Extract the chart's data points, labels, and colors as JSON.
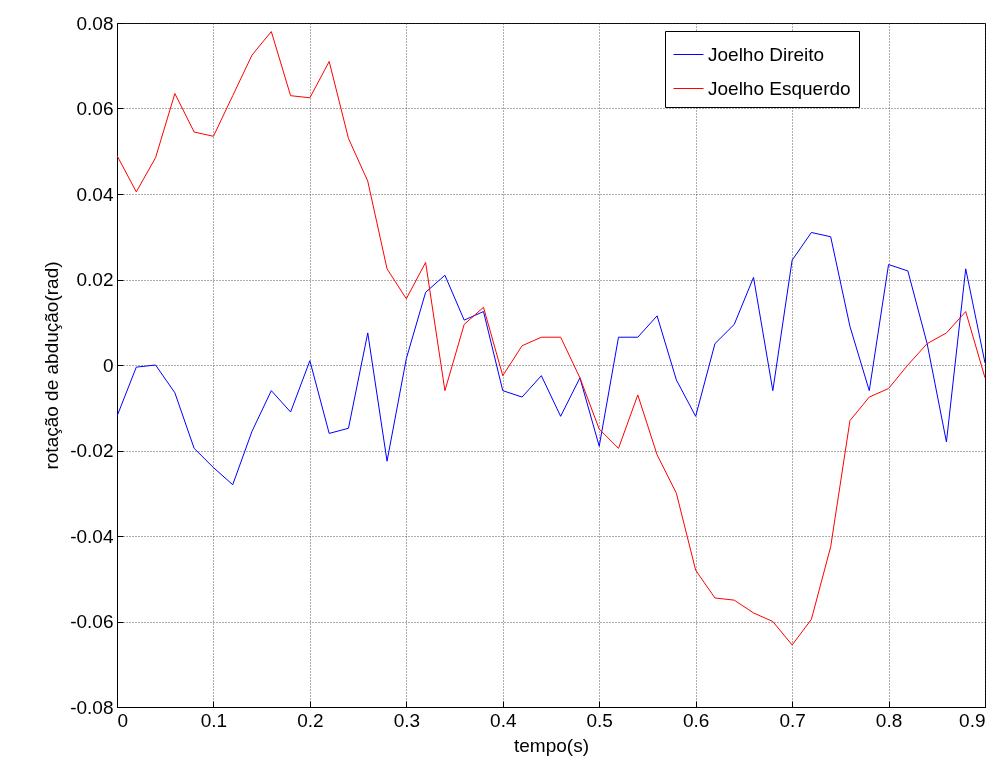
{
  "chart_data": {
    "type": "line",
    "xlabel": "tempo(s)",
    "ylabel": "rotação de abdução(rad)",
    "x": [
      0,
      0.02,
      0.04,
      0.06,
      0.08,
      0.1,
      0.12,
      0.14,
      0.16,
      0.18,
      0.2,
      0.22,
      0.24,
      0.26,
      0.28,
      0.3,
      0.32,
      0.34,
      0.36,
      0.38,
      0.4,
      0.42,
      0.44,
      0.46,
      0.48,
      0.5,
      0.52,
      0.54,
      0.56,
      0.58,
      0.6,
      0.62,
      0.64,
      0.66,
      0.68,
      0.7,
      0.72,
      0.74,
      0.76,
      0.78,
      0.8,
      0.82,
      0.84,
      0.86,
      0.88,
      0.9
    ],
    "series": [
      {
        "name": "Joelho Direito",
        "color": "#0000ff",
        "values": [
          -0.012,
          -0.0005,
          0,
          -0.0065,
          -0.0195,
          -0.024,
          -0.028,
          -0.0155,
          -0.006,
          -0.011,
          0.001,
          -0.016,
          -0.0148,
          0.0075,
          -0.0225,
          0.0015,
          0.017,
          0.021,
          0.0105,
          0.0125,
          -0.006,
          -0.0075,
          -0.0025,
          -0.012,
          -0.003,
          -0.019,
          0.0065,
          0.0065,
          0.0115,
          -0.0035,
          -0.012,
          0.005,
          0.0095,
          0.0205,
          -0.006,
          0.0245,
          0.031,
          0.03,
          0.009,
          -0.006,
          0.0235,
          0.022,
          0.005,
          -0.018,
          0.0225,
          0.0005
        ]
      },
      {
        "name": "Joelho Esquerdo",
        "color": "#ff0000",
        "values": [
          0.049,
          0.0405,
          0.0485,
          0.0635,
          0.0545,
          0.0535,
          0.063,
          0.0725,
          0.078,
          0.063,
          0.0625,
          0.071,
          0.053,
          0.043,
          0.0225,
          0.0155,
          0.024,
          -0.006,
          0.0095,
          0.0135,
          -0.0025,
          0.0045,
          0.0065,
          0.0065,
          -0.003,
          -0.015,
          -0.0195,
          -0.007,
          -0.021,
          -0.03,
          -0.048,
          -0.0545,
          -0.055,
          -0.058,
          -0.06,
          -0.0655,
          -0.0595,
          -0.0425,
          -0.013,
          -0.0075,
          -0.0055,
          0,
          0.005,
          0.0075,
          0.0125,
          -0.003
        ]
      }
    ],
    "xlim": [
      0,
      0.9
    ],
    "xticks": [
      0,
      0.1,
      0.2,
      0.3,
      0.4,
      0.5,
      0.6,
      0.7,
      0.8,
      0.9
    ],
    "ylim": [
      -0.08,
      0.08
    ],
    "yticks": [
      -0.08,
      -0.06,
      -0.04,
      -0.02,
      0,
      0.02,
      0.04,
      0.06,
      0.08
    ],
    "grid": true,
    "legend": "top right"
  }
}
